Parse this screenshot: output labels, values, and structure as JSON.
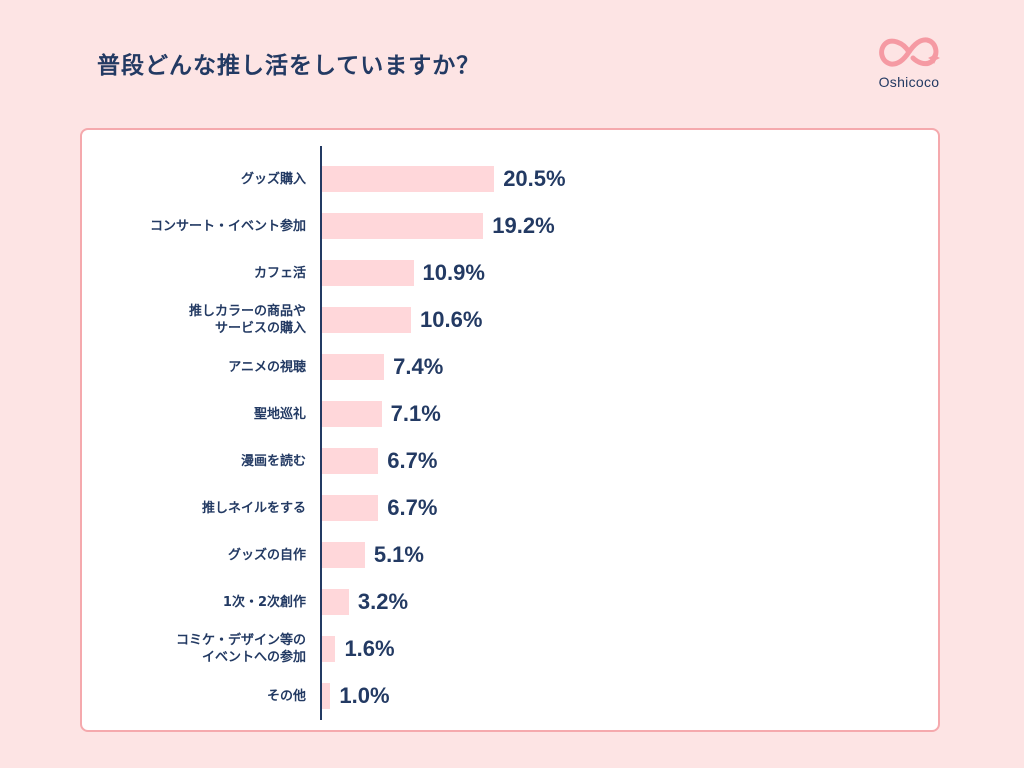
{
  "title": "普段どんな推し活をしていますか？",
  "logo": {
    "text": "Oshicoco",
    "color": "#f59aa3"
  },
  "colors": {
    "background": "#fde4e4",
    "bar": "#ffd7da",
    "text": "#233a63",
    "border": "#f5a9ad"
  },
  "chart_data": {
    "type": "bar",
    "orientation": "horizontal",
    "title": "普段どんな推し活をしていますか？",
    "unit": "%",
    "xlim": [
      0,
      100
    ],
    "categories": [
      "グッズ購入",
      "コンサート・イベント参加",
      "カフェ活",
      "推しカラーの商品や\nサービスの購入",
      "アニメの視聴",
      "聖地巡礼",
      "漫画を読む",
      "推しネイルをする",
      "グッズの自作",
      "1次・2次創作",
      "コミケ・デザイン等の\nイベントへの参加",
      "その他"
    ],
    "values": [
      20.5,
      19.2,
      10.9,
      10.6,
      7.4,
      7.1,
      6.7,
      6.7,
      5.1,
      3.2,
      1.6,
      1.0
    ],
    "value_labels": [
      "20.5%",
      "19.2%",
      "10.9%",
      "10.6%",
      "7.4%",
      "7.1%",
      "6.7%",
      "6.7%",
      "5.1%",
      "3.2%",
      "1.6%",
      "1.0%"
    ]
  }
}
